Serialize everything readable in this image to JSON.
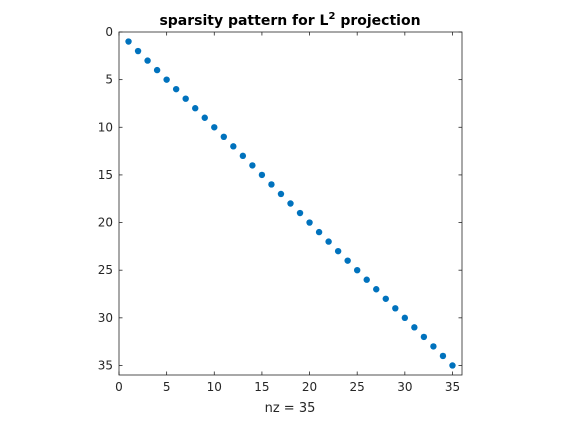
{
  "chart_data": {
    "type": "scatter",
    "title": "sparsity pattern for L",
    "title_superscript": "2",
    "title_suffix": " projection",
    "xlabel": "nz = 35",
    "ylabel": "",
    "xlim": [
      0,
      36
    ],
    "ylim": [
      0,
      36
    ],
    "y_axis_direction": "reversed",
    "xticks": [
      0,
      5,
      10,
      15,
      20,
      25,
      30,
      35
    ],
    "yticks": [
      0,
      5,
      10,
      15,
      20,
      25,
      30,
      35
    ],
    "grid": false,
    "marker_color": "#0072BD",
    "series": [
      {
        "x": [
          1,
          2,
          3,
          4,
          5,
          6,
          7,
          8,
          9,
          10,
          11,
          12,
          13,
          14,
          15,
          16,
          17,
          18,
          19,
          20,
          21,
          22,
          23,
          24,
          25,
          26,
          27,
          28,
          29,
          30,
          31,
          32,
          33,
          34,
          35
        ],
        "y": [
          1,
          2,
          3,
          4,
          5,
          6,
          7,
          8,
          9,
          10,
          11,
          12,
          13,
          14,
          15,
          16,
          17,
          18,
          19,
          20,
          21,
          22,
          23,
          24,
          25,
          26,
          27,
          28,
          29,
          30,
          31,
          32,
          33,
          34,
          35
        ]
      }
    ]
  }
}
